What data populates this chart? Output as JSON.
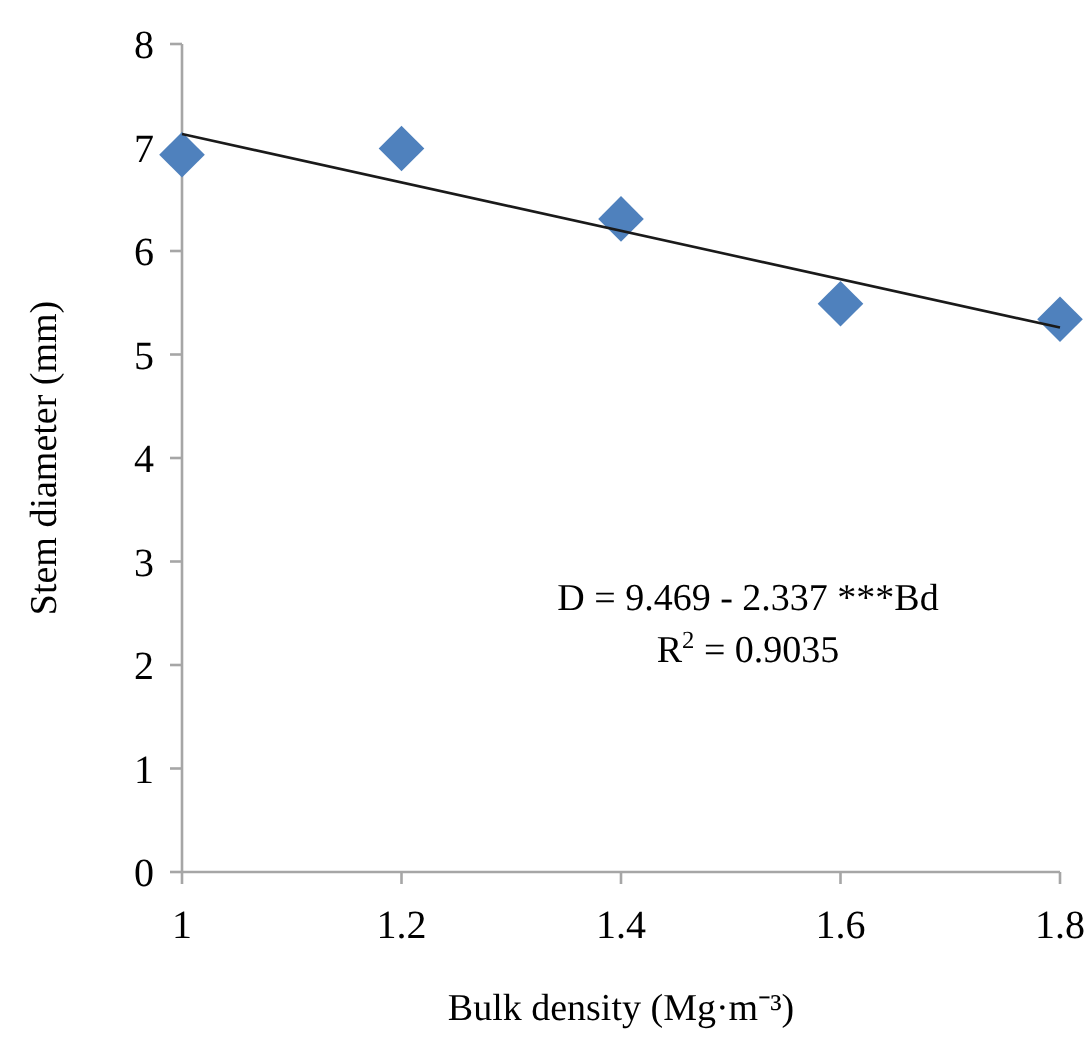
{
  "chart_data": {
    "type": "scatter",
    "xlabel": "Bulk density (Mg·m⁻³)",
    "ylabel": "Stem diameter (mm)",
    "xlim": [
      1,
      1.8
    ],
    "xticks": [
      1,
      1.2,
      1.4,
      1.6,
      1.8
    ],
    "ylim": [
      0,
      8
    ],
    "yticks": [
      0,
      1,
      2,
      3,
      4,
      5,
      6,
      7,
      8
    ],
    "grid": false,
    "marker": "diamond",
    "series": [
      {
        "color": "#4f81bd",
        "x": [
          1,
          1.2,
          1.4,
          1.6,
          1.8
        ],
        "values": [
          6.93,
          6.99,
          6.31,
          5.49,
          5.34
        ]
      },
      {
        "type": "line",
        "color": "#1a1a1a",
        "x": [
          1,
          1.8
        ],
        "values": [
          7.13,
          5.26
        ],
        "marker": "none",
        "line_style": "solid"
      }
    ],
    "annotations": [
      "D = 9.469 - 2.337 ***Bd",
      "R$^{2}$ = 0.9035"
    ]
  }
}
